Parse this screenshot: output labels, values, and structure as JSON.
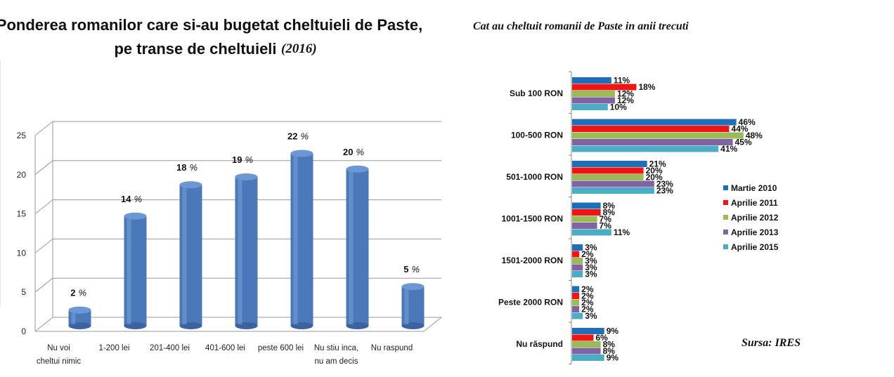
{
  "chart_data": [
    {
      "type": "bar",
      "title_line1": "Ponderea romanilor care si-au bugetat cheltuieli de Paste,",
      "title_line2": "pe transe de  cheltuieli",
      "title_year": "(2016)",
      "categories": [
        [
          "Nu voi",
          "cheltui nimic"
        ],
        [
          "1-200 lei"
        ],
        [
          "201-400 lei"
        ],
        [
          "401-600 lei"
        ],
        [
          "peste 600 lei"
        ],
        [
          "Nu stiu inca,",
          "nu am decis"
        ],
        [
          "Nu raspund"
        ]
      ],
      "values": [
        2,
        14,
        18,
        19,
        22,
        20,
        5
      ],
      "value_labels": [
        "2",
        "14",
        "18",
        "19",
        "22",
        "20",
        "5"
      ],
      "value_suffix": "%",
      "yticks": [
        "0",
        "5",
        "10",
        "15",
        "20",
        "25"
      ],
      "ylim": [
        0,
        25
      ],
      "grid": true,
      "bar_color": "#4a78b8"
    },
    {
      "type": "bar",
      "orientation": "horizontal",
      "title": "Cat au cheltuit romanii de Paste in anii trecuti",
      "categories": [
        "Sub 100 RON",
        "100-500 RON",
        "501-1000 RON",
        "1001-1500 RON",
        "1501-2000 RON",
        "Peste 2000 RON",
        "Nu răspund"
      ],
      "series": [
        {
          "name": "Martie 2010",
          "color": "#1f6fb8",
          "values": [
            11,
            46,
            21,
            8,
            3,
            2,
            9
          ],
          "labels": [
            "11%",
            "46%",
            "21%",
            "8%",
            "3%",
            "2%",
            "9%"
          ]
        },
        {
          "name": "Aprilie 2011",
          "color": "#f01414",
          "values": [
            18,
            44,
            20,
            8,
            2,
            2,
            6
          ],
          "labels": [
            "18%",
            "44%",
            "20%",
            "8%",
            "2%",
            "2%",
            "6%"
          ]
        },
        {
          "name": "Aprilie 2012",
          "color": "#9bbb59",
          "values": [
            12,
            48,
            20,
            7,
            3,
            2,
            8
          ],
          "labels": [
            "12%",
            "48%",
            "20%",
            "7%",
            "3%",
            "2%",
            "8%"
          ]
        },
        {
          "name": "Aprilie 2013",
          "color": "#8064a2",
          "values": [
            12,
            45,
            23,
            7,
            3,
            2,
            8
          ],
          "labels": [
            "12%",
            "45%",
            "23%",
            "7%",
            "3%",
            "2%",
            "8%"
          ]
        },
        {
          "name": "Aprilie 2015",
          "color": "#4bacc6",
          "values": [
            10,
            41,
            23,
            11,
            3,
            3,
            9
          ],
          "labels": [
            "10%",
            "41%",
            "23%",
            "11%",
            "3%",
            "3%",
            "9%"
          ]
        }
      ],
      "xlim": [
        0,
        55
      ],
      "legend": "right",
      "source": "Sursa: IRES"
    }
  ]
}
